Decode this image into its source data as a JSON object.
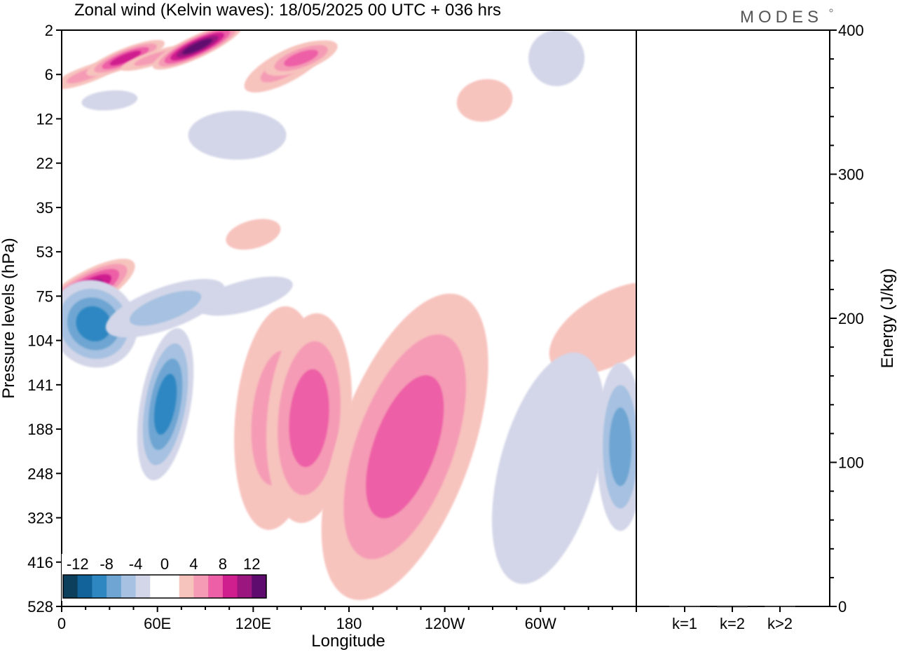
{
  "header": {
    "title": "Zonal wind (Kelvin waves):  18/05/2025  00 UTC  + 036 hrs",
    "logo": "MODES"
  },
  "colors": {
    "frame": "#000000",
    "scale": [
      "#0c3f5c",
      "#12639a",
      "#2f87c2",
      "#6ea5d2",
      "#a6c1e1",
      "#d3d6e8",
      "#ffffff",
      "#ffffff",
      "#f7c3bd",
      "#f59bb5",
      "#ed5fa6",
      "#cf1f8f",
      "#9c1680",
      "#5e0d6e"
    ]
  },
  "chart_data": [
    {
      "type": "heatmap",
      "xlabel": "Longitude",
      "ylabel": "Pressure levels (hPa)",
      "x_ticks": [
        "0",
        "60E",
        "120E",
        "180",
        "120W",
        "60W"
      ],
      "x_tick_values": [
        0,
        60,
        120,
        180,
        240,
        300
      ],
      "xlim": [
        0,
        360
      ],
      "y_ticks": [
        "2",
        "6",
        "12",
        "22",
        "35",
        "53",
        "75",
        "104",
        "141",
        "188",
        "248",
        "323",
        "416",
        "528"
      ],
      "colorbar": {
        "tick_labels": [
          "-12",
          "-8",
          "-4",
          "0",
          "4",
          "8",
          "12"
        ],
        "levels": [
          -14,
          -12,
          -10,
          -8,
          -6,
          -4,
          -2,
          0,
          2,
          4,
          6,
          8,
          10,
          12,
          14
        ]
      },
      "features": [
        {
          "lon": 16,
          "p": 6,
          "value": 5
        },
        {
          "lon": 40,
          "p": 4,
          "value": 8
        },
        {
          "lon": 58,
          "p": 4,
          "value": 5
        },
        {
          "lon": 85,
          "p": 3,
          "value": 12
        },
        {
          "lon": 140,
          "p": 5,
          "value": 5
        },
        {
          "lon": 150,
          "p": 4,
          "value": 7
        },
        {
          "lon": 265,
          "p": 9,
          "value": 3
        },
        {
          "lon": 310,
          "p": 4,
          "value": -3
        },
        {
          "lon": 30,
          "p": 9,
          "value": -3
        },
        {
          "lon": 110,
          "p": 15,
          "value": -3
        },
        {
          "lon": 120,
          "p": 45,
          "value": 3
        },
        {
          "lon": 15,
          "p": 72,
          "value": 10
        },
        {
          "lon": 20,
          "p": 92,
          "value": -8
        },
        {
          "lon": 65,
          "p": 82,
          "value": -5
        },
        {
          "lon": 115,
          "p": 75,
          "value": -3
        },
        {
          "lon": 65,
          "p": 160,
          "value": -9
        },
        {
          "lon": 135,
          "p": 175,
          "value": 5
        },
        {
          "lon": 155,
          "p": 175,
          "value": 6
        },
        {
          "lon": 215,
          "p": 210,
          "value": 7
        },
        {
          "lon": 345,
          "p": 95,
          "value": 3
        },
        {
          "lon": 305,
          "p": 240,
          "value": -3
        },
        {
          "lon": 350,
          "p": 210,
          "value": -6
        }
      ]
    },
    {
      "type": "bar",
      "categories": [
        "k=1",
        "k=2",
        "k>2"
      ],
      "values": [
        0.4,
        0.1,
        0.3
      ],
      "ylabel": "Energy (J/kg)",
      "ylim": [
        0,
        400
      ],
      "y_ticks": [
        "0",
        "100",
        "200",
        "300",
        "400"
      ]
    }
  ]
}
